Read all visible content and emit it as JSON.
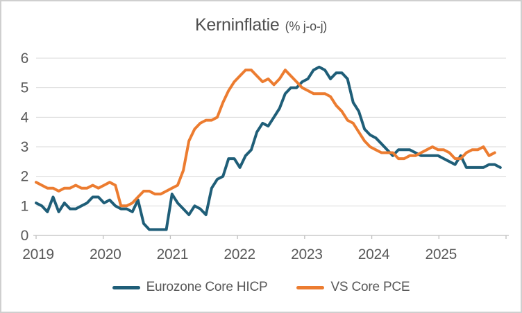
{
  "title": {
    "main": "Kerninflatie",
    "unit": "(% j-o-j)"
  },
  "colors": {
    "gridline": "#d9d9d9",
    "axis_line": "#bfbfbf",
    "tick_text": "#595959",
    "title_text": "#4f4f4f",
    "background": "#ffffff",
    "border": "#cfcfcf"
  },
  "chart_data": {
    "type": "line",
    "title": "Kerninflatie (% j-o-j)",
    "xlabel": "",
    "ylabel": "",
    "ylim": [
      0,
      6
    ],
    "y_ticks": [
      0,
      1,
      2,
      3,
      4,
      5,
      6
    ],
    "grid": "horizontal",
    "legend_position": "bottom",
    "x_axis": {
      "frequency": "monthly",
      "start_month": "2019-01",
      "tick_labels": [
        "2019",
        "2020",
        "2021",
        "2022",
        "2023",
        "2024",
        "2025"
      ]
    },
    "series": [
      {
        "id": "eurozone-core-hicp",
        "name": "Eurozone Core HICP",
        "color": "#1f5e78",
        "start": "2019-01",
        "end": "2025-11",
        "monthly_values": [
          1.1,
          1.0,
          0.8,
          1.3,
          0.8,
          1.1,
          0.9,
          0.9,
          1.0,
          1.1,
          1.3,
          1.3,
          1.1,
          1.2,
          1.0,
          0.9,
          0.9,
          0.8,
          1.2,
          0.4,
          0.2,
          0.2,
          0.2,
          0.2,
          1.4,
          1.1,
          0.9,
          0.7,
          1.0,
          0.9,
          0.7,
          1.6,
          1.9,
          2.0,
          2.6,
          2.6,
          2.3,
          2.7,
          2.9,
          3.5,
          3.8,
          3.7,
          4.0,
          4.3,
          4.8,
          5.0,
          5.0,
          5.2,
          5.3,
          5.6,
          5.7,
          5.6,
          5.3,
          5.5,
          5.5,
          5.3,
          4.5,
          4.2,
          3.6,
          3.4,
          3.3,
          3.1,
          2.9,
          2.7,
          2.9,
          2.9,
          2.9,
          2.8,
          2.7,
          2.7,
          2.7,
          2.7,
          2.6,
          2.5,
          2.4,
          2.7,
          2.3,
          2.3,
          2.3,
          2.3,
          2.4,
          2.4,
          2.3
        ]
      },
      {
        "id": "vs-core-pce",
        "name": "VS Core PCE",
        "color": "#ec7c30",
        "start": "2019-01",
        "end": "2025-10",
        "monthly_values": [
          1.8,
          1.7,
          1.6,
          1.6,
          1.5,
          1.6,
          1.6,
          1.7,
          1.6,
          1.6,
          1.7,
          1.6,
          1.7,
          1.8,
          1.7,
          1.0,
          1.0,
          1.1,
          1.3,
          1.5,
          1.5,
          1.4,
          1.4,
          1.5,
          1.6,
          1.7,
          2.2,
          3.2,
          3.6,
          3.8,
          3.9,
          3.9,
          4.0,
          4.5,
          4.9,
          5.2,
          5.4,
          5.6,
          5.6,
          5.4,
          5.2,
          5.3,
          5.1,
          5.3,
          5.6,
          5.4,
          5.2,
          5.0,
          4.9,
          4.8,
          4.8,
          4.8,
          4.7,
          4.4,
          4.2,
          3.9,
          3.8,
          3.5,
          3.2,
          3.0,
          2.9,
          2.8,
          2.8,
          2.8,
          2.6,
          2.6,
          2.7,
          2.7,
          2.8,
          2.9,
          3.0,
          2.9,
          2.9,
          2.8,
          2.6,
          2.6,
          2.8,
          2.9,
          2.9,
          3.0,
          2.7,
          2.8
        ]
      }
    ]
  }
}
